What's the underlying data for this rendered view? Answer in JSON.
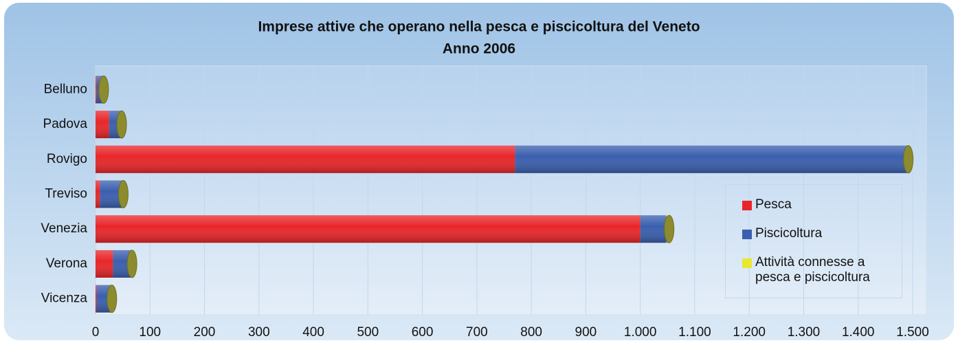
{
  "chart_data": {
    "type": "bar",
    "orientation": "horizontal",
    "stacked": true,
    "title": "Imprese attive che operano nella pesca e piscicoltura del Veneto",
    "subtitle": "Anno 2006",
    "categories": [
      "Belluno",
      "Padova",
      "Rovigo",
      "Treviso",
      "Venezia",
      "Verona",
      "Vicenza"
    ],
    "series": [
      {
        "name": "Pesca",
        "color": "#e8262a",
        "values": [
          2,
          25,
          770,
          8,
          1000,
          32,
          2
        ]
      },
      {
        "name": "Piscicoltura",
        "color": "#3a5fae",
        "values": [
          12,
          22,
          720,
          42,
          48,
          34,
          28
        ]
      },
      {
        "name": "Attività connesse a pesca e piscicoltura",
        "color": "#e8e830",
        "values": [
          1,
          1,
          2,
          1,
          5,
          1,
          0
        ]
      }
    ],
    "xlim": [
      0,
      1500
    ],
    "xticks": [
      0,
      100,
      200,
      300,
      400,
      500,
      600,
      700,
      800,
      900,
      {
        "value": 1000,
        "label": "1.000"
      },
      {
        "value": 1100,
        "label": "1.100"
      },
      {
        "value": 1200,
        "label": "1.200"
      },
      {
        "value": 1300,
        "label": "1.300"
      },
      {
        "value": 1400,
        "label": "1.400"
      },
      {
        "value": 1500,
        "label": "1.500"
      }
    ],
    "grid": true,
    "legend": "right"
  }
}
